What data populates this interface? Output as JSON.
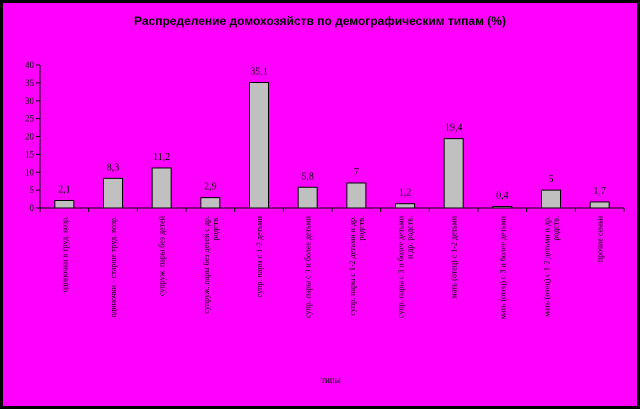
{
  "colors": {
    "background": "#FF00FF",
    "frame": "#000000",
    "bar_fill": "#C0C0C0",
    "bar_stroke": "#000000"
  },
  "chart_data": {
    "type": "bar",
    "title": "Распределение домохозяйств по демографическим типам (%)",
    "xlabel": "типы",
    "ylabel": "",
    "ylim": [
      0,
      40
    ],
    "yticks": [
      0,
      5,
      10,
      15,
      20,
      25,
      30,
      35,
      40
    ],
    "grid": false,
    "categories": [
      "одиночки в труд. возр.",
      "одиночки - старше труд. возр.",
      "супруж. пары без детей",
      "супруж. пары без детей с др. родств.",
      "супр. пары с 1-2 детьми",
      "супр. пары с 3 и более детьми",
      "супр. пары с 1-2 детьми и др. родств.",
      "супр. пары с 3 и более детьми и др. родств.",
      "мать (отец) с 1-2 детьми",
      "мать (отец) с 3 и более детьми",
      "мать (отец) с 1-2 детьми и др. родств.",
      "прочие семьи"
    ],
    "values": [
      2.1,
      8.3,
      11.2,
      2.9,
      35.1,
      5.8,
      7,
      1.2,
      19.4,
      0.4,
      5,
      1.7
    ],
    "labels": [
      "2,1",
      "8,3",
      "11,2",
      "2,9",
      "35,1",
      "5,8",
      "7",
      "1,2",
      "19,4",
      "0,4",
      "5",
      "1,7"
    ]
  }
}
